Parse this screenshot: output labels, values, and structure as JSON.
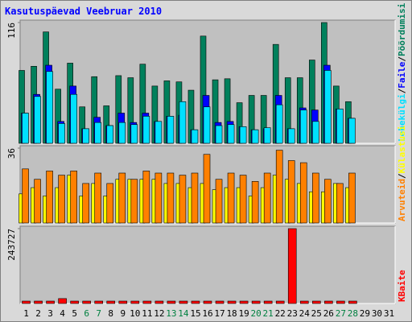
{
  "chart_data": [
    {
      "type": "bar",
      "title": "Kasutuspäevad Veebruar 2010",
      "categories": [
        "1",
        "2",
        "3",
        "4",
        "5",
        "6",
        "7",
        "8",
        "9",
        "10",
        "11",
        "12",
        "13",
        "14",
        "15",
        "16",
        "17",
        "18",
        "19",
        "20",
        "21",
        "22",
        "23",
        "24",
        "25",
        "26",
        "27",
        "28",
        "29",
        "30",
        "31"
      ],
      "category_colors": [
        "#000000",
        "#000000",
        "#000000",
        "#000000",
        "#000000",
        "#008040",
        "#008040",
        "#000000",
        "#000000",
        "#000000",
        "#000000",
        "#000000",
        "#008040",
        "#008040",
        "#000000",
        "#000000",
        "#000000",
        "#000000",
        "#000000",
        "#008040",
        "#008040",
        "#000000",
        "#000000",
        "#000000",
        "#000000",
        "#000000",
        "#008040",
        "#008040",
        "#000000",
        "#000000",
        "#000000"
      ],
      "ylim": [
        0,
        116
      ],
      "yticks": [
        116
      ],
      "separator": "/",
      "series": [
        {
          "name": "Lehekülgi",
          "color": "#00e0ff",
          "values": [
            29,
            45,
            69,
            19,
            47,
            14,
            20,
            17,
            20,
            18,
            26,
            21,
            26,
            40,
            13,
            35,
            17,
            18,
            16,
            13,
            15,
            37,
            14,
            32,
            21,
            70,
            33,
            24,
            null,
            null,
            null
          ]
        },
        {
          "name": "Faile",
          "color": "#0000ff",
          "values": [
            29,
            47,
            75,
            21,
            55,
            14,
            25,
            17,
            29,
            20,
            29,
            21,
            26,
            27,
            13,
            46,
            20,
            21,
            16,
            13,
            14,
            46,
            14,
            34,
            32,
            75,
            33,
            24,
            null,
            null,
            null
          ]
        },
        {
          "name": "Pöördumisi",
          "color": "#00805c",
          "values": [
            70,
            74,
            107,
            52,
            77,
            35,
            64,
            36,
            65,
            63,
            76,
            55,
            60,
            59,
            51,
            103,
            61,
            62,
            39,
            46,
            46,
            95,
            63,
            63,
            80,
            116,
            55,
            40,
            null,
            null,
            null
          ]
        }
      ]
    },
    {
      "type": "bar",
      "ylim": [
        0,
        36
      ],
      "yticks": [
        36
      ],
      "separator": "/",
      "series": [
        {
          "name": "Arvuteid",
          "color": "#ff8000",
          "values": [
            26,
            21,
            25,
            23,
            25,
            19,
            24,
            19,
            24,
            21,
            25,
            24,
            24,
            23,
            24,
            33,
            21,
            24,
            23,
            20,
            24,
            35,
            30,
            29,
            24,
            21,
            19,
            24,
            null,
            null,
            null
          ]
        },
        {
          "name": "Külastusi",
          "color": "#ffff00",
          "values": [
            14,
            17,
            13,
            17,
            23,
            13,
            19,
            13,
            21,
            21,
            21,
            21,
            19,
            19,
            17,
            19,
            16,
            17,
            17,
            13,
            17,
            23,
            21,
            19,
            15,
            15,
            19,
            17,
            null,
            null,
            null
          ]
        }
      ]
    },
    {
      "type": "bar",
      "ylim": [
        0,
        243727
      ],
      "yticks": [
        243727
      ],
      "series": [
        {
          "name": "KBaite",
          "color": "#ff0000",
          "values": [
            900,
            900,
            900,
            16000,
            900,
            900,
            900,
            900,
            900,
            900,
            900,
            900,
            900,
            900,
            900,
            900,
            900,
            900,
            900,
            900,
            900,
            900,
            243727,
            900,
            900,
            900,
            900,
            900,
            null,
            null,
            null
          ]
        }
      ]
    }
  ]
}
